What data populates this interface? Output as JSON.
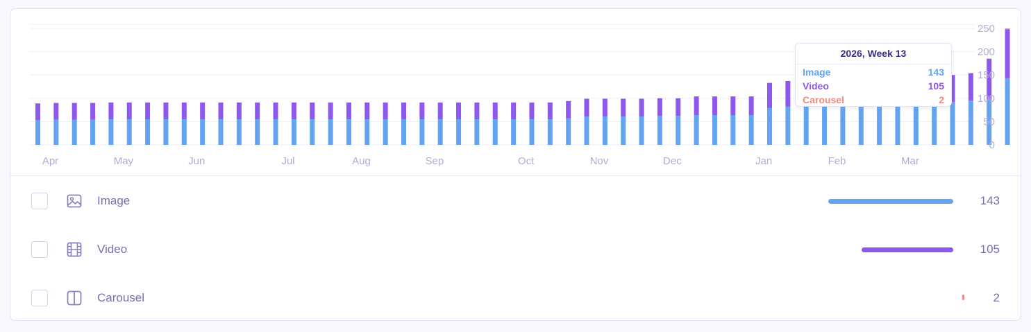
{
  "colors": {
    "image": "#63a4f2",
    "video": "#8e57ee",
    "carousel": "#f08a7e",
    "axis_text": "#b3acd3",
    "legend_text": "#7a6fae",
    "tooltip_title": "#3b2c85"
  },
  "chart_data": {
    "type": "bar",
    "stacked": true,
    "x_tick_labels": [
      "Apr",
      "May",
      "Jun",
      "Jul",
      "Aug",
      "Sep",
      "Oct",
      "Nov",
      "Dec",
      "Jan",
      "Feb",
      "Mar"
    ],
    "y_tick_labels": [
      "250",
      "200",
      "150",
      "100",
      "50",
      "0"
    ],
    "ylim": [
      0,
      250
    ],
    "y_axis_position": "right",
    "grid": true,
    "series": [
      {
        "name": "Image",
        "color": "#63a4f2",
        "values": [
          53,
          54,
          54,
          54,
          55,
          55,
          55,
          55,
          55,
          55,
          55,
          55,
          55,
          55,
          55,
          55,
          55,
          55,
          55,
          55,
          55,
          55,
          55,
          55,
          55,
          55,
          55,
          55,
          55,
          57,
          61,
          61,
          61,
          61,
          62,
          62,
          64,
          64,
          64,
          64,
          79,
          82,
          83,
          83,
          84,
          85,
          86,
          88,
          90,
          91,
          92,
          95,
          97,
          143
        ]
      },
      {
        "name": "Video",
        "color": "#8e57ee",
        "values": [
          36,
          36,
          36,
          36,
          36,
          36,
          36,
          36,
          36,
          36,
          36,
          36,
          36,
          36,
          36,
          36,
          36,
          36,
          36,
          36,
          36,
          36,
          36,
          36,
          36,
          36,
          36,
          36,
          36,
          37,
          38,
          38,
          38,
          38,
          38,
          38,
          40,
          40,
          40,
          40,
          54,
          55,
          56,
          56,
          56,
          57,
          58,
          58,
          58,
          58,
          58,
          59,
          88,
          105
        ]
      },
      {
        "name": "Carousel",
        "color": "#f08a7e",
        "values": [
          0,
          0,
          0,
          0,
          0,
          0,
          0,
          0,
          0,
          0,
          0,
          0,
          0,
          0,
          0,
          0,
          0,
          0,
          0,
          0,
          0,
          0,
          0,
          0,
          0,
          0,
          0,
          0,
          0,
          0,
          0,
          0,
          0,
          0,
          0,
          0,
          0,
          0,
          0,
          0,
          0,
          0,
          0,
          0,
          0,
          0,
          0,
          0,
          0,
          0,
          0,
          0,
          0,
          2
        ]
      }
    ],
    "tooltip": {
      "title": "2026, Week 13",
      "rows": [
        {
          "label": "Image",
          "value": "143",
          "color": "#63a4f2"
        },
        {
          "label": "Video",
          "value": "105",
          "color": "#8e57ee"
        },
        {
          "label": "Carousel",
          "value": "2",
          "color": "#f08a7e"
        }
      ]
    }
  },
  "legend": {
    "max_value": 143,
    "items": [
      {
        "label": "Image",
        "value": "143",
        "value_num": 143,
        "color": "#63a4f2",
        "icon": "image-icon"
      },
      {
        "label": "Video",
        "value": "105",
        "value_num": 105,
        "color": "#8e57ee",
        "icon": "film-icon"
      },
      {
        "label": "Carousel",
        "value": "2",
        "value_num": 2,
        "color": "#f08a7e",
        "icon": "carousel-icon"
      }
    ]
  }
}
